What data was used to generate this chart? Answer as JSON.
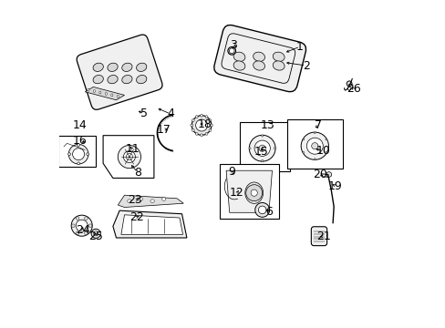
{
  "bg_color": "#ffffff",
  "font_size": 9,
  "label_color": "#000000",
  "border_color": "#000000",
  "leader_data": [
    [
      0.735,
      0.858,
      0.685,
      0.838
    ],
    [
      0.753,
      0.8,
      0.685,
      0.81
    ],
    [
      0.533,
      0.862,
      0.547,
      0.852
    ],
    [
      0.34,
      0.653,
      0.295,
      0.672
    ],
    [
      0.26,
      0.653,
      0.235,
      0.665
    ],
    [
      0.64,
      0.355,
      0.63,
      0.362
    ],
    [
      0.79,
      0.618,
      0.775,
      0.605
    ],
    [
      0.24,
      0.475,
      0.215,
      0.503
    ],
    [
      0.527,
      0.477,
      0.536,
      0.468
    ],
    [
      0.805,
      0.54,
      0.775,
      0.548
    ],
    [
      0.225,
      0.545,
      0.212,
      0.558
    ],
    [
      0.543,
      0.412,
      0.552,
      0.426
    ],
    [
      0.635,
      0.618,
      0.635,
      0.618
    ],
    [
      0.065,
      0.618,
      0.065,
      0.618
    ],
    [
      0.618,
      0.538,
      0.618,
      0.548
    ],
    [
      0.065,
      0.572,
      0.088,
      0.562
    ],
    [
      0.32,
      0.605,
      0.34,
      0.607
    ],
    [
      0.445,
      0.622,
      0.422,
      0.622
    ],
    [
      0.843,
      0.433,
      0.833,
      0.438
    ],
    [
      0.795,
      0.468,
      0.813,
      0.462
    ],
    [
      0.808,
      0.278,
      0.795,
      0.28
    ],
    [
      0.237,
      0.338,
      0.252,
      0.343
    ],
    [
      0.232,
      0.39,
      0.252,
      0.393
    ],
    [
      0.073,
      0.298,
      0.073,
      0.315
    ],
    [
      0.112,
      0.278,
      0.112,
      0.292
    ],
    [
      0.898,
      0.728,
      0.888,
      0.742
    ]
  ],
  "label_nums": [
    "1",
    "2",
    "3",
    "4",
    "5",
    "6",
    "7",
    "8",
    "9",
    "10",
    "11",
    "12",
    "13",
    "14",
    "15",
    "16",
    "17",
    "18",
    "19",
    "20",
    "21",
    "22",
    "23",
    "24",
    "25",
    "26"
  ]
}
